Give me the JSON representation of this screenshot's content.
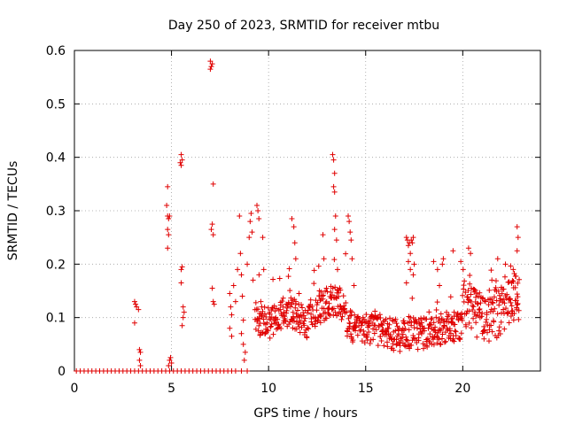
{
  "chart_data": {
    "type": "scatter",
    "title": "Day 250 of 2023, SRMTID for receiver mtbu",
    "xlabel": "GPS time / hours",
    "ylabel": "SRMTID / TECUs",
    "xlim": [
      0,
      24
    ],
    "ylim": [
      0,
      0.6
    ],
    "xticks": [
      0,
      5,
      10,
      15,
      20
    ],
    "xtick_labels": [
      "0",
      "5",
      "10",
      "15",
      "20"
    ],
    "yticks": [
      0,
      0.1,
      0.2,
      0.3,
      0.4,
      0.5,
      0.6
    ],
    "ytick_labels": [
      "0",
      "0.1",
      "0.2",
      "0.3",
      "0.4",
      "0.5",
      "0.6"
    ],
    "grid": true,
    "marker": "+",
    "color": "#e00000",
    "series": [
      {
        "name": "SRMTID",
        "points": [
          [
            0.1,
            0
          ],
          [
            0.3,
            0
          ],
          [
            0.5,
            0
          ],
          [
            0.7,
            0
          ],
          [
            0.9,
            0
          ],
          [
            1.1,
            0
          ],
          [
            1.3,
            0
          ],
          [
            1.5,
            0
          ],
          [
            1.7,
            0
          ],
          [
            1.9,
            0
          ],
          [
            2.1,
            0
          ],
          [
            2.3,
            0
          ],
          [
            2.5,
            0
          ],
          [
            2.7,
            0
          ],
          [
            2.9,
            0
          ],
          [
            3.1,
            0
          ],
          [
            3.3,
            0
          ],
          [
            3.5,
            0
          ],
          [
            3.7,
            0
          ],
          [
            3.9,
            0
          ],
          [
            4.1,
            0
          ],
          [
            4.3,
            0
          ],
          [
            4.5,
            0
          ],
          [
            4.7,
            0
          ],
          [
            4.9,
            0
          ],
          [
            5.1,
            0
          ],
          [
            5.3,
            0
          ],
          [
            5.5,
            0
          ],
          [
            5.7,
            0
          ],
          [
            5.9,
            0
          ],
          [
            6.1,
            0
          ],
          [
            6.3,
            0
          ],
          [
            6.5,
            0
          ],
          [
            6.7,
            0
          ],
          [
            6.9,
            0
          ],
          [
            7.1,
            0
          ],
          [
            7.3,
            0
          ],
          [
            7.5,
            0
          ],
          [
            7.7,
            0
          ],
          [
            7.9,
            0
          ],
          [
            8.1,
            0
          ],
          [
            8.3,
            0
          ],
          [
            8.6,
            0
          ],
          [
            8.9,
            0
          ],
          [
            3.1,
            0.13
          ],
          [
            3.15,
            0.125
          ],
          [
            3.2,
            0.12
          ],
          [
            3.1,
            0.09
          ],
          [
            3.3,
            0.115
          ],
          [
            3.35,
            0.04
          ],
          [
            3.4,
            0.035
          ],
          [
            3.35,
            0.02
          ],
          [
            3.4,
            0.01
          ],
          [
            4.8,
            0.345
          ],
          [
            4.75,
            0.31
          ],
          [
            4.8,
            0.29
          ],
          [
            4.85,
            0.285
          ],
          [
            4.9,
            0.29
          ],
          [
            4.8,
            0.265
          ],
          [
            4.85,
            0.255
          ],
          [
            4.8,
            0.23
          ],
          [
            4.9,
            0.02
          ],
          [
            4.85,
            0.01
          ],
          [
            4.95,
            0.025
          ],
          [
            5.0,
            0.015
          ],
          [
            5.5,
            0.405
          ],
          [
            5.45,
            0.39
          ],
          [
            5.5,
            0.385
          ],
          [
            5.55,
            0.395
          ],
          [
            5.5,
            0.19
          ],
          [
            5.55,
            0.195
          ],
          [
            5.5,
            0.165
          ],
          [
            5.6,
            0.12
          ],
          [
            5.65,
            0.11
          ],
          [
            5.55,
            0.085
          ],
          [
            5.6,
            0.1
          ],
          [
            7.0,
            0.58
          ],
          [
            7.05,
            0.57
          ],
          [
            7.1,
            0.575
          ],
          [
            7.0,
            0.565
          ],
          [
            7.15,
            0.35
          ],
          [
            7.1,
            0.275
          ],
          [
            7.05,
            0.265
          ],
          [
            7.15,
            0.255
          ],
          [
            7.1,
            0.155
          ],
          [
            7.15,
            0.13
          ],
          [
            7.2,
            0.125
          ],
          [
            8.0,
            0.145
          ],
          [
            8.05,
            0.12
          ],
          [
            8.1,
            0.105
          ],
          [
            8.0,
            0.08
          ],
          [
            8.1,
            0.065
          ],
          [
            8.2,
            0.16
          ],
          [
            8.3,
            0.13
          ],
          [
            8.4,
            0.19
          ],
          [
            8.5,
            0.29
          ],
          [
            8.55,
            0.22
          ],
          [
            8.6,
            0.18
          ],
          [
            8.65,
            0.14
          ],
          [
            8.7,
            0.095
          ],
          [
            8.6,
            0.07
          ],
          [
            8.7,
            0.05
          ],
          [
            8.75,
            0.02
          ],
          [
            8.8,
            0.035
          ],
          [
            8.9,
            0.2
          ],
          [
            9.0,
            0.25
          ],
          [
            9.05,
            0.28
          ],
          [
            9.1,
            0.295
          ],
          [
            9.15,
            0.26
          ],
          [
            9.2,
            0.17
          ],
          [
            9.4,
            0.31
          ],
          [
            9.45,
            0.3
          ],
          [
            9.5,
            0.285
          ],
          [
            9.6,
            0.13
          ],
          [
            9.65,
            0.12
          ],
          [
            9.7,
            0.25
          ],
          [
            9.75,
            0.19
          ],
          [
            11.2,
            0.285
          ],
          [
            11.3,
            0.27
          ],
          [
            11.35,
            0.24
          ],
          [
            11.4,
            0.21
          ],
          [
            12.8,
            0.255
          ],
          [
            12.85,
            0.21
          ],
          [
            13.3,
            0.405
          ],
          [
            13.35,
            0.395
          ],
          [
            13.4,
            0.37
          ],
          [
            13.35,
            0.345
          ],
          [
            13.4,
            0.335
          ],
          [
            13.45,
            0.29
          ],
          [
            13.4,
            0.265
          ],
          [
            13.5,
            0.245
          ],
          [
            13.55,
            0.19
          ],
          [
            14.1,
            0.29
          ],
          [
            14.15,
            0.28
          ],
          [
            14.2,
            0.26
          ],
          [
            14.25,
            0.245
          ],
          [
            14.3,
            0.21
          ],
          [
            14.4,
            0.16
          ],
          [
            17.1,
            0.25
          ],
          [
            17.15,
            0.245
          ],
          [
            17.2,
            0.235
          ],
          [
            17.25,
            0.24
          ],
          [
            17.3,
            0.22
          ],
          [
            17.35,
            0.245
          ],
          [
            17.4,
            0.24
          ],
          [
            17.45,
            0.25
          ],
          [
            17.5,
            0.2
          ],
          [
            17.45,
            0.18
          ],
          [
            17.2,
            0.205
          ],
          [
            17.3,
            0.19
          ],
          [
            17.1,
            0.165
          ],
          [
            18.5,
            0.205
          ],
          [
            18.7,
            0.19
          ],
          [
            18.8,
            0.16
          ],
          [
            18.95,
            0.2
          ],
          [
            19.0,
            0.21
          ],
          [
            19.5,
            0.225
          ],
          [
            19.9,
            0.205
          ],
          [
            20.3,
            0.23
          ],
          [
            20.4,
            0.22
          ],
          [
            21.5,
            0.17
          ],
          [
            21.8,
            0.21
          ],
          [
            22.2,
            0.2
          ],
          [
            22.6,
            0.19
          ],
          [
            22.8,
            0.27
          ],
          [
            22.85,
            0.25
          ],
          [
            22.8,
            0.225
          ]
        ]
      }
    ]
  }
}
